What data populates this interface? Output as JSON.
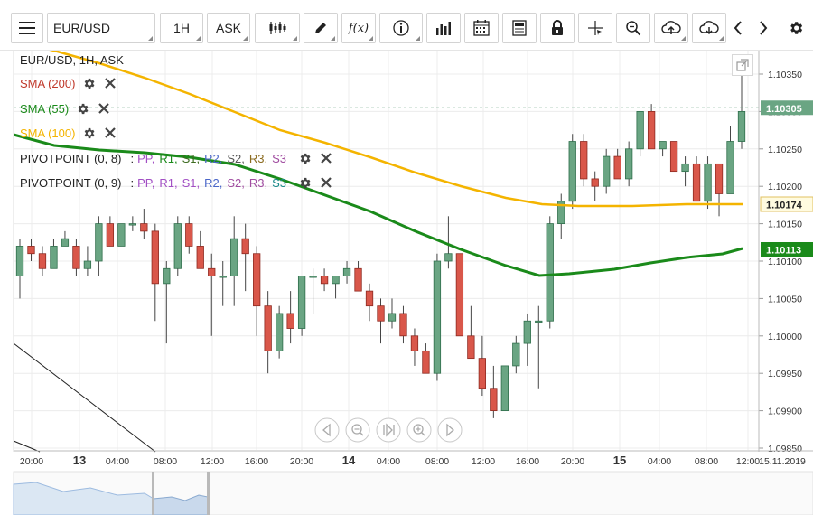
{
  "toolbar": {
    "symbol": "EUR/USD",
    "interval": "1H",
    "price_type": "ASK",
    "icons": [
      "menu-icon",
      "candles-icon",
      "pen-icon",
      "function-icon",
      "info-icon",
      "bars-icon",
      "calendar-icon",
      "sheet-icon",
      "lock-icon",
      "crosshair-icon",
      "zoom-icon",
      "cloud-upload-icon",
      "cloud-download-icon",
      "chevron-left-icon",
      "chevron-right-icon",
      "gear-icon"
    ],
    "fx_label": "f(x)"
  },
  "legend": {
    "title": "EUR/USD, 1H, ASK",
    "sma200": "SMA (200)",
    "sma55": "SMA (55)",
    "sma100": "SMA (100)",
    "pivot1": "PIVOTPOINT (0, 8)",
    "pivot2": "PIVOTPOINT (0, 9)",
    "pivot_sep": ":",
    "pivot_items": [
      "PP,",
      "R1,",
      "S1,",
      "R2,",
      "S2,",
      "R3,",
      "S3"
    ],
    "colors": {
      "sma200": "#c0392b",
      "sma55": "#1a8a1a",
      "sma100": "#f4b400",
      "pp": "#a24fc4",
      "r1": "#1a8a1a",
      "s1": "#3d6b1f",
      "r2": "#4a66c8",
      "s2": "#555555",
      "r3": "#8b6b1f",
      "s3": "#a04ca0"
    }
  },
  "axis": {
    "y_ticks": [
      "1.10350",
      "1.10300",
      "1.10250",
      "1.10200",
      "1.10150",
      "1.10100",
      "1.10050",
      "1.10000",
      "1.09950",
      "1.09900",
      "1.09850"
    ],
    "price_badges": [
      {
        "label": "1.10305",
        "bg": "#6aa583"
      },
      {
        "label": "1.10174",
        "bg": "#fffbe0"
      },
      {
        "label": "1.10113",
        "bg": "#1a8a1a"
      }
    ],
    "x_ticks": [
      "20:00",
      "13",
      "04:00",
      "08:00",
      "12:00",
      "16:00",
      "20:00",
      "14",
      "04:00",
      "08:00",
      "12:00",
      "16:00",
      "20:00",
      "15",
      "04:00",
      "08:00",
      "12:00",
      "15.11.2019"
    ]
  },
  "chart_data": {
    "type": "candlestick",
    "title": "EUR/USD, 1H, ASK",
    "ylim": [
      1.0985,
      1.1037
    ],
    "candles": [
      [
        1.1008,
        1.1013,
        1.1005,
        1.1012
      ],
      [
        1.1012,
        1.1013,
        1.101,
        1.1011
      ],
      [
        1.1011,
        1.1012,
        1.1008,
        1.1009
      ],
      [
        1.1009,
        1.1013,
        1.1009,
        1.1012
      ],
      [
        1.1012,
        1.1014,
        1.1012,
        1.1013
      ],
      [
        1.1012,
        1.1013,
        1.1008,
        1.1009
      ],
      [
        1.1009,
        1.1012,
        1.1008,
        1.101
      ],
      [
        1.101,
        1.1016,
        1.1008,
        1.1015
      ],
      [
        1.1015,
        1.1016,
        1.1012,
        1.1012
      ],
      [
        1.1012,
        1.1015,
        1.1012,
        1.1015
      ],
      [
        1.1015,
        1.1016,
        1.1014,
        1.1015
      ],
      [
        1.1015,
        1.1017,
        1.1013,
        1.1014
      ],
      [
        1.1014,
        1.1015,
        1.1002,
        1.1007
      ],
      [
        1.1007,
        1.101,
        1.0999,
        1.1009
      ],
      [
        1.1009,
        1.1016,
        1.1008,
        1.1015
      ],
      [
        1.1015,
        1.1016,
        1.1011,
        1.1012
      ],
      [
        1.1012,
        1.1014,
        1.1009,
        1.1009
      ],
      [
        1.1009,
        1.1011,
        1.1,
        1.1008
      ],
      [
        1.1008,
        1.101,
        1.1004,
        1.1008
      ],
      [
        1.1008,
        1.1016,
        1.1004,
        1.1013
      ],
      [
        1.1013,
        1.1015,
        1.1006,
        1.1011
      ],
      [
        1.1011,
        1.1012,
        1.1,
        1.1004
      ],
      [
        1.1004,
        1.1006,
        1.0995,
        1.0998
      ],
      [
        1.0998,
        1.1004,
        1.0997,
        1.1003
      ],
      [
        1.1003,
        1.1006,
        1.0999,
        1.1001
      ],
      [
        1.1001,
        1.1008,
        1.1,
        1.1008
      ],
      [
        1.1008,
        1.1009,
        1.1003,
        1.1008
      ],
      [
        1.1008,
        1.1009,
        1.1006,
        1.1007
      ],
      [
        1.1007,
        1.1008,
        1.1005,
        1.1008
      ],
      [
        1.1008,
        1.101,
        1.1007,
        1.1009
      ],
      [
        1.1009,
        1.101,
        1.1006,
        1.1006
      ],
      [
        1.1006,
        1.1007,
        1.1002,
        1.1004
      ],
      [
        1.1004,
        1.1005,
        1.0999,
        1.1002
      ],
      [
        1.1002,
        1.1005,
        1.1001,
        1.1003
      ],
      [
        1.1003,
        1.1004,
        1.0999,
        1.1
      ],
      [
        1.1,
        1.1001,
        1.0996,
        1.0998
      ],
      [
        1.0998,
        1.0999,
        1.0995,
        1.0995
      ],
      [
        1.0995,
        1.1011,
        1.0994,
        1.101
      ],
      [
        1.101,
        1.1016,
        1.1009,
        1.1011
      ],
      [
        1.1011,
        1.1011,
        1.1,
        1.1
      ],
      [
        1.1,
        1.1004,
        1.0997,
        1.0997
      ],
      [
        1.0997,
        1.1,
        1.0992,
        1.0993
      ],
      [
        1.0993,
        1.0996,
        1.0989,
        1.099
      ],
      [
        1.099,
        1.0996,
        1.099,
        1.0996
      ],
      [
        1.0996,
        1.1,
        1.0995,
        1.0999
      ],
      [
        1.0999,
        1.1003,
        1.0996,
        1.1002
      ],
      [
        1.1002,
        1.1004,
        1.0993,
        1.1002
      ],
      [
        1.1002,
        1.1016,
        1.1001,
        1.1015
      ],
      [
        1.1015,
        1.1019,
        1.1013,
        1.1018
      ],
      [
        1.1018,
        1.1027,
        1.1017,
        1.1026
      ],
      [
        1.1026,
        1.1027,
        1.102,
        1.1021
      ],
      [
        1.1021,
        1.1022,
        1.1018,
        1.102
      ],
      [
        1.102,
        1.1025,
        1.1019,
        1.1024
      ],
      [
        1.1024,
        1.1025,
        1.1021,
        1.1021
      ],
      [
        1.1021,
        1.1026,
        1.102,
        1.1025
      ],
      [
        1.1025,
        1.103,
        1.1024,
        1.103
      ],
      [
        1.103,
        1.1031,
        1.1025,
        1.1025
      ],
      [
        1.1025,
        1.1026,
        1.1024,
        1.1026
      ],
      [
        1.1026,
        1.1026,
        1.1022,
        1.1022
      ],
      [
        1.1022,
        1.1024,
        1.102,
        1.1023
      ],
      [
        1.1023,
        1.1024,
        1.1018,
        1.1018
      ],
      [
        1.1018,
        1.1024,
        1.1017,
        1.1023
      ],
      [
        1.1023,
        1.1023,
        1.1016,
        1.1019
      ],
      [
        1.1019,
        1.1028,
        1.1019,
        1.1026
      ],
      [
        1.1026,
        1.1035,
        1.1025,
        1.103
      ]
    ],
    "sma100_last": 1.10174,
    "sma55_last": 1.10113,
    "current_price": 1.10305
  }
}
